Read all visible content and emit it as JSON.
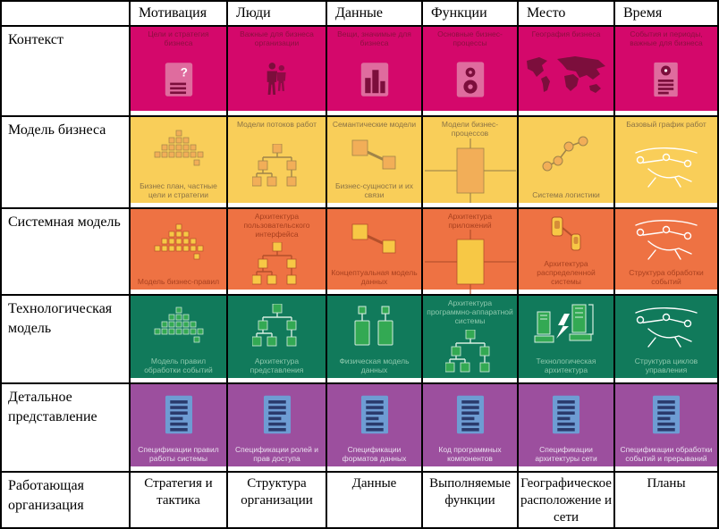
{
  "matrix": {
    "corner": "",
    "columns": [
      "Мотивация",
      "Люди",
      "Данные",
      "Функции",
      "Место",
      "Время"
    ],
    "rows": [
      {
        "header": "Контекст",
        "type": "colored",
        "colors": {
          "bg": "#D4086B",
          "text": "#8C1040",
          "icon_main": "#DF6C9E",
          "icon_accent": "#7C0E3C"
        },
        "cells": [
          {
            "top": "Цели и стратегия бизнеса",
            "icon": "document-question"
          },
          {
            "top": "Важные для бизнеса организации",
            "icon": "people"
          },
          {
            "top": "Вещи, значимые для бизнеса",
            "icon": "buildings"
          },
          {
            "top": "Основные бизнес-процессы",
            "icon": "gears-document"
          },
          {
            "top": "География бизнеса",
            "icon": "world-map"
          },
          {
            "top": "События и периоды, важные для бизнеса",
            "icon": "document-clock"
          }
        ]
      },
      {
        "header": "Модель бизнеса",
        "type": "colored",
        "colors": {
          "bg": "#F9CE59",
          "text": "#8A7245",
          "icon_main": "#F2AE58",
          "icon_accent": "#A08449"
        },
        "cells": [
          {
            "bottom": "Бизнес план, частные цели и стратегии",
            "icon": "pyramid"
          },
          {
            "top": "Модели потоков работ",
            "icon": "org-tree"
          },
          {
            "top": "Семантические модели",
            "bottom": "Бизнес-сущности и их связи",
            "icon": "entities-link"
          },
          {
            "top": "Модели бизнес-процессов",
            "icon": "process-cross"
          },
          {
            "bottom": "Система логистики",
            "icon": "network-nodes"
          },
          {
            "top": "Базовый график работ",
            "icon": "whiteboard-sketch"
          }
        ]
      },
      {
        "header": "Системная модель",
        "type": "colored",
        "colors": {
          "bg": "#EE7243",
          "text": "#A8401F",
          "icon_main": "#F7C845",
          "icon_accent": "#B4502B"
        },
        "cells": [
          {
            "bottom": "Модель бизнес-правил",
            "icon": "pyramid"
          },
          {
            "top": "Архитектура пользовательского интерфейса",
            "icon": "org-tree"
          },
          {
            "bottom": "Концептуальная модель данных",
            "icon": "entities-link"
          },
          {
            "top": "Архитектура приложений",
            "icon": "process-cross"
          },
          {
            "bottom": "Архитектура распределенной системы",
            "icon": "linked-stores"
          },
          {
            "bottom": "Структура обработки событий",
            "icon": "whiteboard-sketch"
          }
        ]
      },
      {
        "header": "Технологическая модель",
        "type": "colored",
        "colors": {
          "bg": "#117A5B",
          "text": "#8FC9AE",
          "icon_main": "#33A953",
          "icon_accent": "#D5EDE0"
        },
        "cells": [
          {
            "bottom": "Модель правил обработки событий",
            "icon": "pyramid"
          },
          {
            "bottom": "Архитектура представления",
            "icon": "org-tree"
          },
          {
            "bottom": "Физическая модель данных",
            "icon": "physical-data"
          },
          {
            "top": "Архитектура программно-аппаратной системы",
            "icon": "org-tree"
          },
          {
            "bottom": "Технологическая архитектура",
            "icon": "computers-link"
          },
          {
            "bottom": "Структура циклов управления",
            "icon": "whiteboard-sketch"
          }
        ]
      },
      {
        "header": "Детальное представление",
        "type": "colored",
        "colors": {
          "bg": "#9C4F9E",
          "text": "#EADFEF",
          "icon_main": "#6E9CD3",
          "icon_accent": "#2A3A6C"
        },
        "cells": [
          {
            "bottom": "Спецификации правил работы системы",
            "icon": "document-lines"
          },
          {
            "bottom": "Спецификации ролей и прав доступа",
            "icon": "document-lines"
          },
          {
            "bottom": "Спецификации форматов данных",
            "icon": "document-lines"
          },
          {
            "bottom": "Код программных компонентов",
            "icon": "document-lines"
          },
          {
            "bottom": "Спецификации архитектуры сети",
            "icon": "document-lines"
          },
          {
            "bottom": "Спецификации обработки событий и прерываний",
            "icon": "document-lines"
          }
        ]
      },
      {
        "header": "Работающая организация",
        "type": "plain",
        "cells": [
          {
            "label": "Стратегия и тактика"
          },
          {
            "label": "Структура организации"
          },
          {
            "label": "Данные"
          },
          {
            "label": "Выполняемые функции"
          },
          {
            "label": "Географическое расположение и сети"
          },
          {
            "label": "Планы"
          }
        ]
      }
    ]
  }
}
